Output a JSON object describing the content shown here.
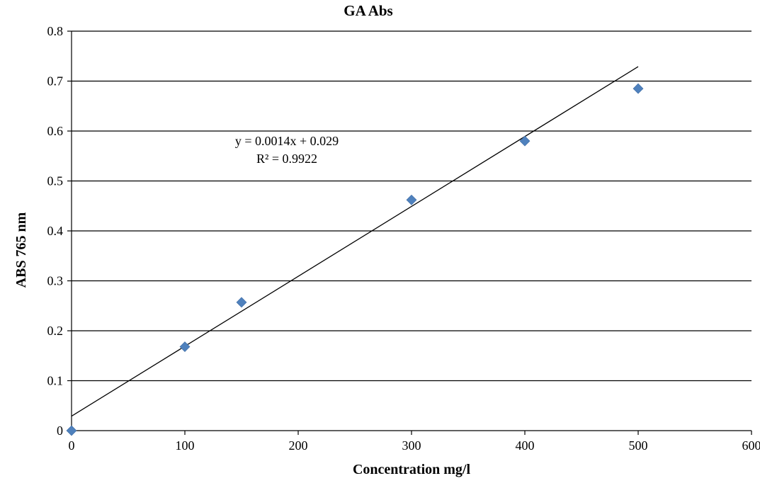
{
  "chart_data": {
    "type": "scatter",
    "title": "GA Abs",
    "xlabel": "Concentration mg/l",
    "ylabel": "ABS 765 nm",
    "xlim": [
      0,
      600
    ],
    "ylim": [
      0,
      0.8
    ],
    "x_ticks": [
      0,
      100,
      200,
      300,
      400,
      500,
      600
    ],
    "y_ticks": [
      0,
      0.1,
      0.2,
      0.3,
      0.4,
      0.5,
      0.6,
      0.7,
      0.8
    ],
    "grid": "horizontal",
    "legend": "none",
    "series": [
      {
        "marker": "diamond",
        "color": "#4F81BD",
        "x": [
          0,
          100,
          150,
          300,
          400,
          500
        ],
        "y": [
          0,
          0.168,
          0.257,
          0.462,
          0.58,
          0.685
        ]
      }
    ],
    "trendline": {
      "type": "linear",
      "slope": 0.0014,
      "intercept": 0.029,
      "x_range": [
        0,
        500
      ],
      "equation": "y = 0.0014x + 0.029",
      "r_squared": "R² = 0.9922"
    }
  }
}
